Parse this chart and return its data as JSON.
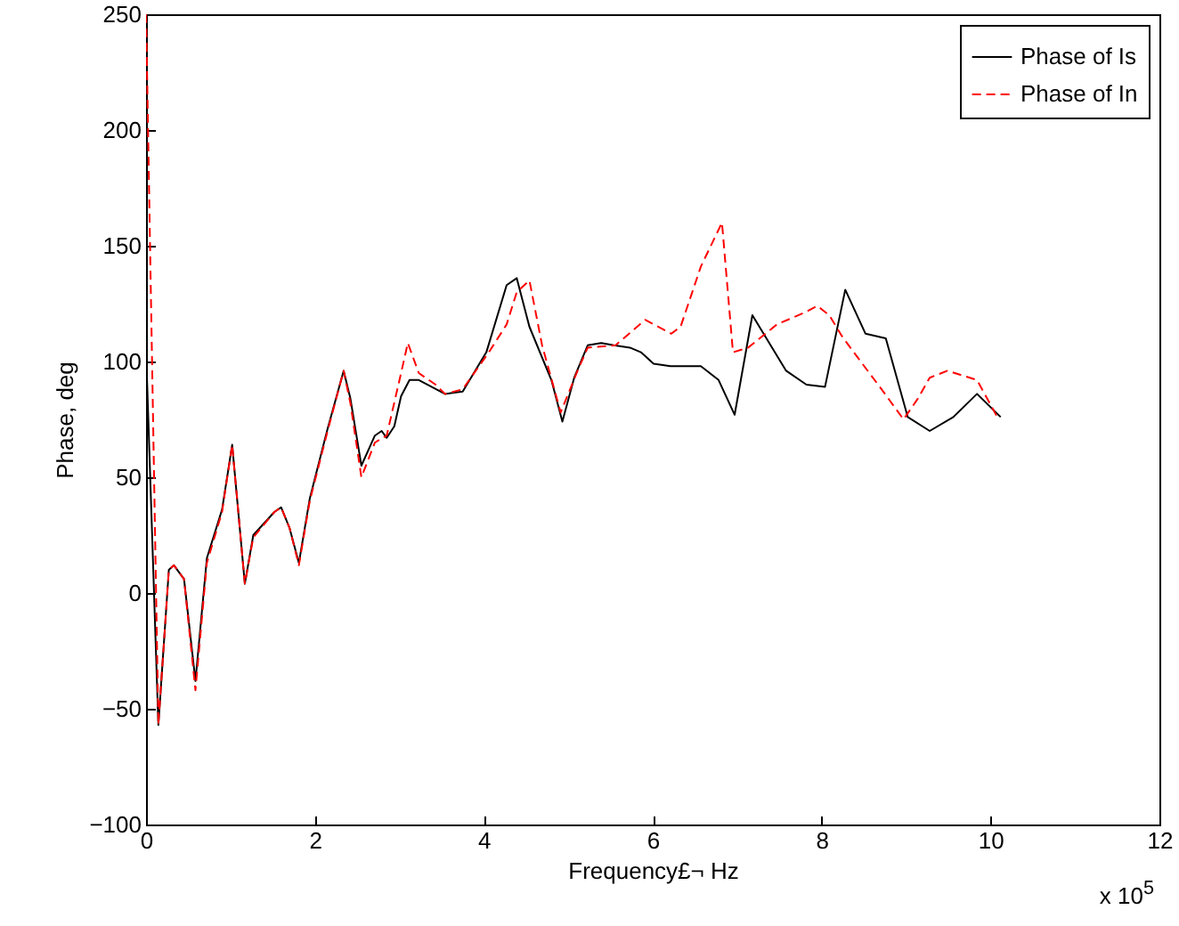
{
  "chart_data": {
    "type": "line",
    "xlabel": "Frequency£¬ Hz",
    "ylabel": "Phase, deg",
    "xlim": [
      0,
      12
    ],
    "xticks": [
      0,
      2,
      4,
      6,
      8,
      10,
      12
    ],
    "ylim": [
      -100,
      250
    ],
    "yticks": [
      -100,
      -50,
      0,
      50,
      100,
      150,
      200,
      250
    ],
    "grid": false,
    "legend": "top right",
    "annotations": [
      "x 10$^{5}$"
    ],
    "series": [
      {
        "name": "Phase of Is",
        "color": "#000000",
        "line_style": "solid",
        "x": [
          0,
          0.146,
          0.27,
          0.33,
          0.45,
          0.585,
          0.72,
          0.9,
          1.02,
          1.17,
          1.27,
          1.52,
          1.6,
          1.7,
          1.81,
          1.94,
          2.15,
          2.34,
          2.42,
          2.55,
          2.71,
          2.79,
          2.85,
          2.94,
          3.02,
          3.12,
          3.23,
          3.54,
          3.75,
          4.03,
          4.27,
          4.39,
          4.54,
          4.8,
          4.93,
          5.07,
          5.23,
          5.39,
          5.54,
          5.73,
          5.86,
          6.01,
          6.21,
          6.57,
          6.78,
          6.97,
          7.18,
          7.58,
          7.82,
          8.04,
          8.28,
          8.52,
          8.76,
          9.02,
          9.28,
          9.56,
          9.84,
          10.12
        ],
        "values": [
          105,
          -57,
          10,
          12,
          6,
          -38,
          15,
          36,
          64,
          4,
          25,
          35,
          37,
          28,
          13,
          41,
          71,
          96,
          84,
          55,
          68,
          70,
          67,
          72,
          85,
          92,
          92,
          86,
          87,
          104,
          133,
          136,
          115,
          92,
          74,
          93,
          107,
          108,
          107,
          106,
          104,
          99,
          98,
          98,
          92,
          77,
          120,
          96,
          90,
          89,
          131,
          112,
          110,
          76,
          70,
          76,
          86,
          76
        ]
      },
      {
        "name": "Phase of In",
        "color": "#ff0000",
        "line_style": "dashed",
        "x": [
          0,
          0.146,
          0.27,
          0.33,
          0.45,
          0.585,
          0.72,
          0.9,
          1.02,
          1.17,
          1.27,
          1.52,
          1.6,
          1.7,
          1.81,
          1.94,
          2.15,
          2.34,
          2.42,
          2.55,
          2.71,
          2.85,
          3.02,
          3.1,
          3.23,
          3.43,
          3.54,
          3.75,
          4.06,
          4.27,
          4.39,
          4.54,
          4.69,
          4.91,
          5.11,
          5.23,
          5.56,
          5.91,
          6.22,
          6.33,
          6.57,
          6.82,
          6.95,
          7.13,
          7.47,
          7.79,
          7.95,
          8.09,
          8.24,
          8.38,
          8.69,
          8.97,
          9.14,
          9.28,
          9.49,
          9.84,
          10.08
        ],
        "values": [
          250,
          -57,
          10,
          12,
          6,
          -42,
          13,
          35,
          64,
          4,
          24,
          35,
          37,
          28,
          12,
          40,
          70,
          96,
          82,
          50,
          65,
          68,
          95,
          108,
          95,
          90,
          86,
          88,
          104,
          116,
          130,
          135,
          107,
          78,
          96,
          106,
          107,
          118,
          112,
          115,
          141,
          160,
          104,
          106,
          116,
          121,
          124,
          120,
          111,
          104,
          89,
          75,
          84,
          93,
          96,
          92,
          76
        ]
      }
    ]
  }
}
